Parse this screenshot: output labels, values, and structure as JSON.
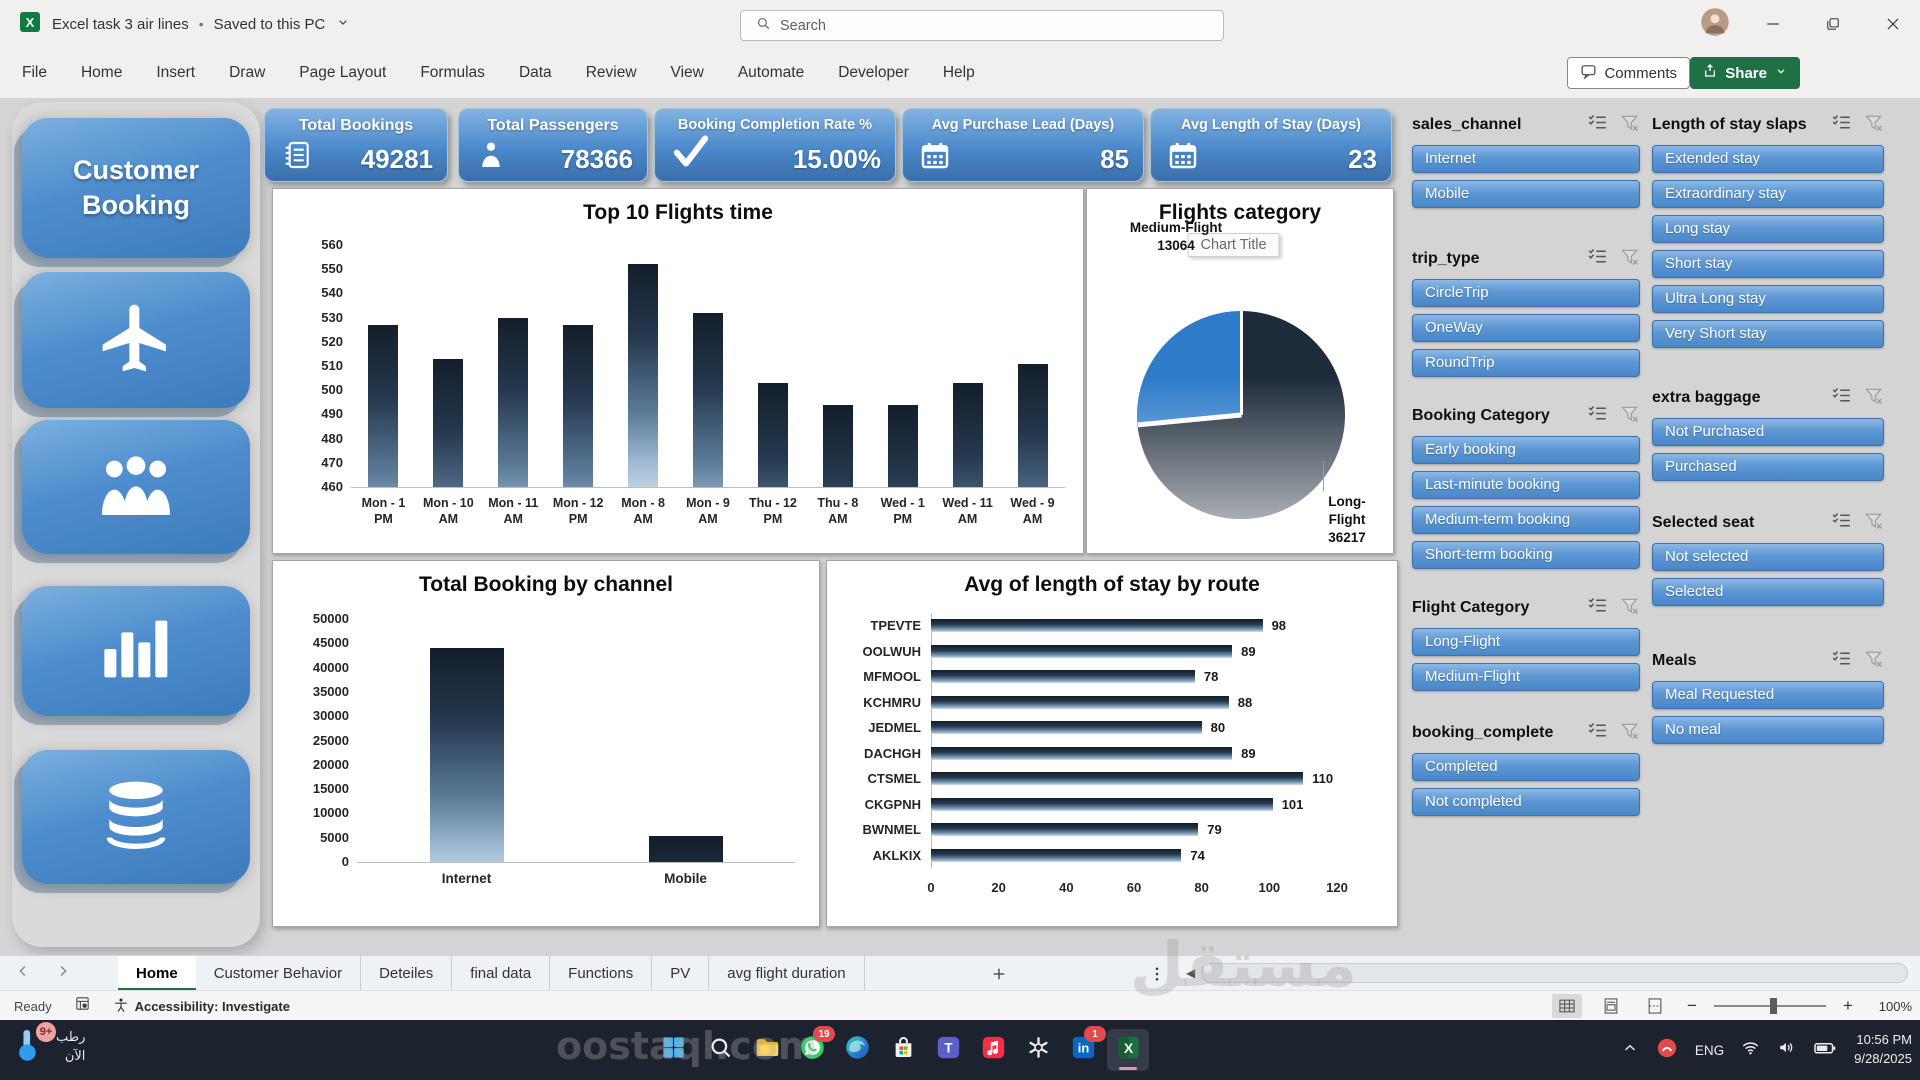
{
  "window": {
    "title": "Excel task 3 air lines",
    "saved_status": "Saved to this PC"
  },
  "search": {
    "placeholder": "Search"
  },
  "ribbon": {
    "tabs": [
      "File",
      "Home",
      "Insert",
      "Draw",
      "Page Layout",
      "Formulas",
      "Data",
      "Review",
      "View",
      "Automate",
      "Developer",
      "Help"
    ],
    "comments_label": "Comments",
    "share_label": "Share"
  },
  "sidebar": {
    "title": "Customer Booking",
    "cards": [
      "airplane-icon",
      "passengers-icon",
      "bar-chart-icon",
      "database-icon"
    ]
  },
  "kpis": [
    {
      "label": "Total Bookings",
      "value": "49281",
      "icon": "ledger"
    },
    {
      "label": "Total Passengers",
      "value": "78366",
      "icon": "person"
    },
    {
      "label": "Booking Completion Rate %",
      "value": "15.00%",
      "icon": "check"
    },
    {
      "label": "Avg Purchase Lead (Days)",
      "value": "85",
      "icon": "calendar"
    },
    {
      "label": "Avg Length of Stay (Days)",
      "value": "23",
      "icon": "calendar"
    }
  ],
  "chart_data": [
    {
      "type": "bar",
      "title": "Top 10 Flights time",
      "categories": [
        "Mon - 1 PM",
        "Mon - 10 AM",
        "Mon - 11 AM",
        "Mon - 12 PM",
        "Mon - 8 AM",
        "Mon - 9 AM",
        "Thu - 12 PM",
        "Thu - 8 AM",
        "Wed - 1 PM",
        "Wed - 11 AM",
        "Wed - 9 AM"
      ],
      "values": [
        527,
        513,
        530,
        527,
        552,
        532,
        503,
        494,
        494,
        503,
        511
      ],
      "ylim": [
        460,
        560
      ],
      "ystep": 10
    },
    {
      "type": "pie",
      "title": "Flights category",
      "overlay_label": "Chart Title",
      "slices": [
        {
          "name": "Long-Flight",
          "value": 36217,
          "color": "#1e2b3a"
        },
        {
          "name": "Medium-Flight",
          "value": 13064,
          "color": "#2e7cc9"
        }
      ]
    },
    {
      "type": "bar",
      "title": "Total Booking by channel",
      "categories": [
        "Internet",
        "Mobile"
      ],
      "values": [
        44000,
        5300
      ],
      "ylim": [
        0,
        50000
      ],
      "ystep": 5000
    },
    {
      "type": "hbar",
      "title": "Avg of length of stay by route",
      "categories": [
        "TPEVTE",
        "OOLWUH",
        "MFMOOL",
        "KCHMRU",
        "JEDMEL",
        "DACHGH",
        "CTSMEL",
        "CKGPNH",
        "BWNMEL",
        "AKLKIX"
      ],
      "values": [
        98,
        89,
        78,
        88,
        80,
        89,
        110,
        101,
        79,
        74
      ],
      "xlim": [
        0,
        120
      ],
      "xstep": 20
    }
  ],
  "slicers": {
    "col1": [
      {
        "title": "sales_channel",
        "items": [
          "Internet",
          "Mobile"
        ]
      },
      {
        "title": "trip_type",
        "items": [
          "CircleTrip",
          "OneWay",
          "RoundTrip"
        ]
      },
      {
        "title": "Booking Category",
        "items": [
          "Early booking",
          "Last-minute booking",
          "Medium-term booking",
          "Short-term booking"
        ]
      },
      {
        "title": "Flight Category",
        "items": [
          "Long-Flight",
          "Medium-Flight"
        ]
      },
      {
        "title": "booking_complete",
        "items": [
          "Completed",
          "Not completed"
        ]
      }
    ],
    "col2": [
      {
        "title": "Length of stay slaps",
        "items": [
          "Extended stay",
          "Extraordinary stay",
          "Long stay",
          "Short stay",
          "Ultra Long stay",
          "Very Short stay"
        ]
      },
      {
        "title": "extra baggage",
        "items": [
          "Not Purchased",
          "Purchased"
        ]
      },
      {
        "title": "Selected seat",
        "items": [
          "Not selected",
          "Selected"
        ]
      },
      {
        "title": "Meals",
        "items": [
          "Meal Requested",
          "No meal"
        ]
      }
    ]
  },
  "sheet_tabs": {
    "active": "Home",
    "tabs": [
      "Home",
      "Customer Behavior",
      "Deteiles",
      "final data",
      "Functions",
      "PV",
      "avg flight duration"
    ]
  },
  "status_bar": {
    "ready": "Ready",
    "accessibility": "Accessibility: Investigate",
    "zoom": "100%"
  },
  "taskbar": {
    "weather": {
      "badge": "9+",
      "line1": "رطب",
      "line2": "الآن"
    },
    "icons": [
      {
        "name": "start"
      },
      {
        "name": "search"
      },
      {
        "name": "explorer"
      },
      {
        "name": "whatsapp",
        "badge": "19"
      },
      {
        "name": "edge"
      },
      {
        "name": "store"
      },
      {
        "name": "teams"
      },
      {
        "name": "music"
      },
      {
        "name": "chatgpt"
      },
      {
        "name": "linkedin",
        "badge": "1"
      },
      {
        "name": "excel",
        "active": true
      }
    ],
    "tray": {
      "lang": "ENG",
      "time": "10:56 PM",
      "date": "9/28/2025"
    }
  },
  "watermarks": {
    "arabic": "مستقل",
    "domain": "oostaql.com"
  }
}
